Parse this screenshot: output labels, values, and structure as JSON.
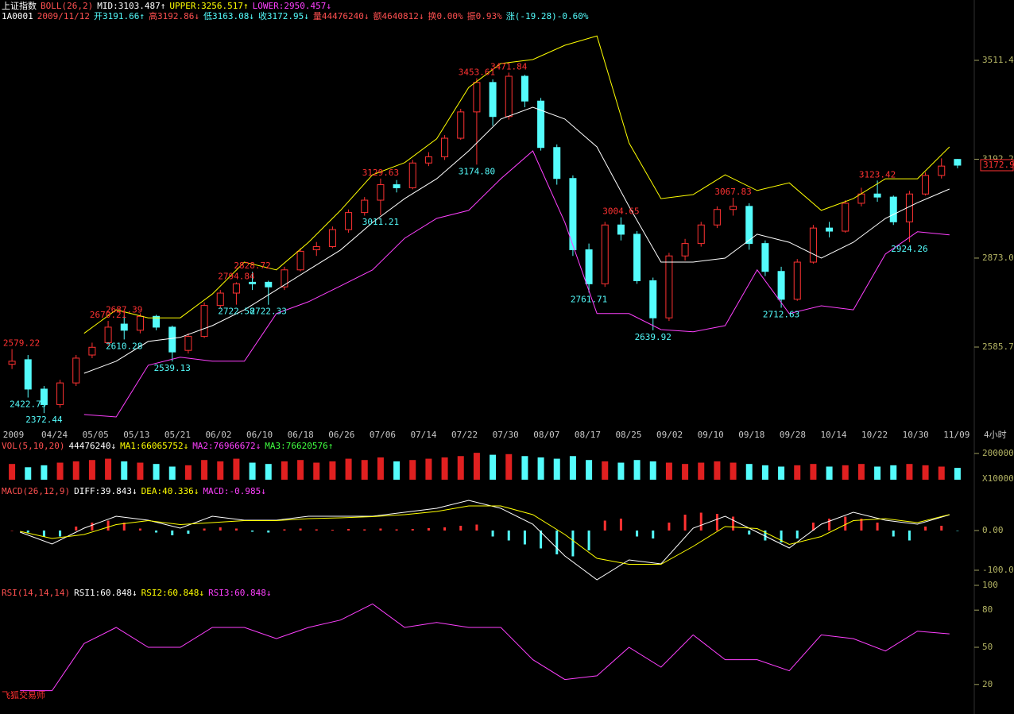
{
  "watermark": "飞狐交易师",
  "chart_data": [
    {
      "type": "candlestick",
      "legend": [
        {
          "text": "上证指数",
          "color": "#ffffff"
        },
        {
          "text": "BOLL(26,2)",
          "color": "#ff5050"
        },
        {
          "text": "MID:3103.487↑",
          "color": "#ffffff"
        },
        {
          "text": "UPPER:3256.517↑",
          "color": "#ffff00"
        },
        {
          "text": "LOWER:2950.457↓",
          "color": "#ff40ff"
        }
      ],
      "info": [
        {
          "text": "1A0001",
          "color": "#ffffff"
        },
        {
          "text": "2009/11/12",
          "color": "#ff5050"
        },
        {
          "text": "开3191.66↑",
          "color": "#54fcfc"
        },
        {
          "text": "高3192.86↓",
          "color": "#ff5050"
        },
        {
          "text": "低3163.08↓",
          "color": "#54fcfc"
        },
        {
          "text": "收3172.95↓",
          "color": "#54fcfc"
        },
        {
          "text": "量44476240↓",
          "color": "#ff5050"
        },
        {
          "text": "额4640812↓",
          "color": "#ff5050"
        },
        {
          "text": "换0.00%",
          "color": "#ff5050"
        },
        {
          "text": "振0.93%",
          "color": "#ff5050"
        },
        {
          "text": "涨(-19.28)-0.60%",
          "color": "#54fcfc"
        }
      ],
      "candles": [
        [
          2530,
          2579.22,
          2515,
          2540
        ],
        [
          2545,
          2560,
          2422.79,
          2450
        ],
        [
          2450,
          2460,
          2372.44,
          2400
        ],
        [
          2400,
          2480,
          2390,
          2470
        ],
        [
          2470,
          2560,
          2460,
          2550
        ],
        [
          2560,
          2600,
          2550,
          2585
        ],
        [
          2600,
          2670.21,
          2590,
          2650
        ],
        [
          2660,
          2687.39,
          2610.28,
          2640
        ],
        [
          2640,
          2695,
          2630,
          2685
        ],
        [
          2685,
          2690,
          2640,
          2650
        ],
        [
          2650,
          2655,
          2539.13,
          2570
        ],
        [
          2575,
          2630,
          2565,
          2620
        ],
        [
          2620,
          2730,
          2615,
          2720
        ],
        [
          2720,
          2770,
          2710,
          2760
        ],
        [
          2760,
          2794.84,
          2722.58,
          2790
        ],
        [
          2795,
          2828.72,
          2770,
          2790
        ],
        [
          2795,
          2800,
          2722.33,
          2780
        ],
        [
          2780,
          2845,
          2770,
          2835
        ],
        [
          2835,
          2905,
          2830,
          2895
        ],
        [
          2900,
          2925,
          2880,
          2910
        ],
        [
          2910,
          2975,
          2905,
          2965
        ],
        [
          2965,
          3030,
          2955,
          3020
        ],
        [
          3020,
          3070,
          3010,
          3060
        ],
        [
          3060,
          3129.63,
          3011.21,
          3110
        ],
        [
          3110,
          3125,
          3085,
          3100
        ],
        [
          3100,
          3190,
          3095,
          3180
        ],
        [
          3180,
          3215,
          3170,
          3200
        ],
        [
          3200,
          3270,
          3190,
          3260
        ],
        [
          3260,
          3355,
          3255,
          3345
        ],
        [
          3345,
          3453.61,
          3174.8,
          3440
        ],
        [
          3440,
          3450,
          3300,
          3330
        ],
        [
          3330,
          3471.84,
          3320,
          3460
        ],
        [
          3460,
          3465,
          3360,
          3380
        ],
        [
          3380,
          3390,
          3220,
          3230
        ],
        [
          3230,
          3240,
          3110,
          3130
        ],
        [
          3130,
          3140,
          2880,
          2900
        ],
        [
          2900,
          2920,
          2761.71,
          2790
        ],
        [
          2790,
          2990,
          2780,
          2980
        ],
        [
          2980,
          3004.65,
          2930,
          2950
        ],
        [
          2950,
          2960,
          2790,
          2800
        ],
        [
          2800,
          2810,
          2639.92,
          2680
        ],
        [
          2680,
          2890,
          2670,
          2880
        ],
        [
          2880,
          2935,
          2865,
          2920
        ],
        [
          2920,
          2990,
          2910,
          2980
        ],
        [
          2980,
          3040,
          2970,
          3030
        ],
        [
          3030,
          3067.83,
          3010,
          3040
        ],
        [
          3040,
          3050,
          2900,
          2920
        ],
        [
          2920,
          2930,
          2815,
          2830
        ],
        [
          2830,
          2845,
          2712.63,
          2740
        ],
        [
          2740,
          2870,
          2735,
          2860
        ],
        [
          2860,
          2980,
          2855,
          2970
        ],
        [
          2970,
          2990,
          2940,
          2960
        ],
        [
          2960,
          3060,
          2955,
          3050
        ],
        [
          3050,
          3100,
          3040,
          3080
        ],
        [
          3080,
          3123.42,
          3055,
          3070
        ],
        [
          3070,
          3075,
          2980,
          2990
        ],
        [
          2990,
          3090,
          2924.26,
          3080
        ],
        [
          3080,
          3150,
          3075,
          3140
        ],
        [
          3140,
          3195,
          3130,
          3170
        ],
        [
          3191.66,
          3192.86,
          3163.08,
          3172.95
        ]
      ],
      "series": [
        {
          "color": "#ffff00",
          "values": [
            null,
            null,
            2630,
            2706,
            2680,
            2680,
            2757,
            2860,
            2835,
            2924,
            3027,
            3142,
            3181,
            3258,
            3424,
            3501,
            3514,
            3560,
            3590,
            3245,
            3065,
            3078,
            3142,
            3091,
            3116,
            3027,
            3065,
            3129,
            3129,
            3232
          ]
        },
        {
          "color": "#ffffff",
          "values": [
            null,
            null,
            2501,
            2540,
            2604,
            2617,
            2655,
            2706,
            2770,
            2835,
            2899,
            2988,
            3065,
            3129,
            3219,
            3322,
            3360,
            3322,
            3232,
            3040,
            2860,
            2860,
            2873,
            2950,
            2924,
            2873,
            2924,
            3001,
            3052,
            3096
          ]
        },
        {
          "color": "#ff40ff",
          "values": [
            null,
            null,
            2368,
            2360,
            2527,
            2553,
            2540,
            2540,
            2694,
            2732,
            2783,
            2835,
            2937,
            3001,
            3027,
            3129,
            3219,
            2988,
            2694,
            2694,
            2642,
            2635,
            2655,
            2835,
            2694,
            2719,
            2706,
            2886,
            2958,
            2948
          ]
        }
      ],
      "price_labels": [
        "2579.22",
        "2422.79",
        "2372.44",
        "2670.21",
        "2687.39",
        "2610.28",
        "2539.13",
        "2794.84",
        "2722.58",
        "2828.72",
        "2722.33",
        "3129.63",
        "3011.21",
        "3453.61",
        "3174.80",
        "3471.84",
        "3004.65",
        "2761.71",
        "2639.92",
        "3067.83",
        "2712.63",
        "3123.42",
        "2924.26"
      ],
      "last_price_label": "3172.9",
      "ylim": [
        2321.6,
        3667.8
      ],
      "yticks": [
        {
          "value": 2585.7,
          "label": "2585.7"
        },
        {
          "value": 2873,
          "label": "2873.0"
        },
        {
          "value": 3192.2,
          "label": "3192.2"
        },
        {
          "value": 3511.4,
          "label": "3511.4"
        }
      ],
      "x_labels": [
        "2009",
        "04/24",
        "05/05",
        "05/13",
        "05/21",
        "06/02",
        "06/10",
        "06/18",
        "06/26",
        "07/06",
        "07/14",
        "07/22",
        "07/30",
        "08/07",
        "08/17",
        "08/25",
        "09/02",
        "09/10",
        "09/18",
        "09/28",
        "10/14",
        "10/22",
        "10/30",
        "11/09"
      ],
      "x_unit": "4小时"
    },
    {
      "type": "bar",
      "legend": [
        {
          "text": "VOL(5,10,20)",
          "color": "#ff5050"
        },
        {
          "text": "44476240↓",
          "color": "#ffffff"
        },
        {
          "text": "MA1:66065752↓",
          "color": "#ffff00"
        },
        {
          "text": "MA2:76966672↓",
          "color": "#ff40ff"
        },
        {
          "text": "MA3:76620576↑",
          "color": "#40ff40"
        }
      ],
      "values": [
        120000,
        95000,
        110000,
        130000,
        140000,
        150000,
        160000,
        140000,
        130000,
        120000,
        100000,
        110000,
        150000,
        140000,
        160000,
        130000,
        120000,
        140000,
        150000,
        130000,
        140000,
        160000,
        150000,
        170000,
        140000,
        150000,
        160000,
        170000,
        180000,
        205000,
        190000,
        195000,
        180000,
        170000,
        160000,
        180000,
        150000,
        140000,
        130000,
        150000,
        140000,
        130000,
        120000,
        130000,
        140000,
        130000,
        120000,
        110000,
        100000,
        110000,
        120000,
        100000,
        110000,
        120000,
        100000,
        110000,
        120000,
        110000,
        100000,
        90000
      ],
      "ylim": [
        0,
        236000
      ],
      "yticks": [
        200000
      ],
      "y_unit": "X10000"
    },
    {
      "type": "macd",
      "legend": [
        {
          "text": "MACD(26,12,9)",
          "color": "#ff5050"
        },
        {
          "text": "DIFF:39.843↓",
          "color": "#ffffff"
        },
        {
          "text": "DEA:40.336↓",
          "color": "#ffff00"
        },
        {
          "text": "MACD:-0.985↓",
          "color": "#ff40ff"
        }
      ],
      "histogram": [
        0,
        -5,
        -15,
        -15,
        10,
        20,
        25,
        20,
        5,
        -5,
        -12,
        -8,
        5,
        8,
        5,
        -3,
        -5,
        3,
        5,
        3,
        2,
        4,
        3,
        5,
        3,
        4,
        6,
        8,
        12,
        15,
        -15,
        -25,
        -35,
        -45,
        -60,
        -65,
        -50,
        25,
        30,
        -15,
        -20,
        20,
        40,
        45,
        42,
        35,
        -10,
        -25,
        -30,
        -20,
        20,
        30,
        35,
        30,
        20,
        -15,
        -25,
        10,
        12,
        -1
      ],
      "series": [
        {
          "color": "#ffffff",
          "values": [
            -4,
            -34,
            6,
            36,
            26,
            6,
            36,
            26,
            26,
            36,
            36,
            36,
            46,
            56,
            76,
            56,
            16,
            -64,
            -124,
            -74,
            -84,
            6,
            36,
            -4,
            -44,
            16,
            46,
            26,
            16,
            39.843
          ]
        },
        {
          "color": "#ffff00",
          "values": [
            -2,
            -20,
            -10,
            15,
            25,
            15,
            20,
            25,
            25,
            30,
            32,
            35,
            40,
            48,
            62,
            62,
            40,
            -10,
            -70,
            -85,
            -85,
            -40,
            10,
            5,
            -35,
            -15,
            25,
            30,
            20,
            40.336
          ]
        }
      ],
      "ylim": [
        -134,
        106
      ],
      "yticks": [
        {
          "value": 0,
          "label": "0.00"
        },
        {
          "value": -100,
          "label": "-100.0"
        }
      ]
    },
    {
      "type": "line",
      "legend": [
        {
          "text": "RSI(14,14,14)",
          "color": "#ff5050"
        },
        {
          "text": "RSI1:60.848↓",
          "color": "#ffffff"
        },
        {
          "text": "RSI2:60.848↓",
          "color": "#ffff00"
        },
        {
          "text": "RSI3:60.848↓",
          "color": "#ff40ff"
        }
      ],
      "series": [
        {
          "color": "#ff40ff",
          "values": [
            15,
            15,
            53,
            66,
            50,
            50,
            66,
            66,
            57,
            66,
            72,
            85,
            66,
            70,
            66,
            66,
            40,
            24,
            27,
            50,
            34,
            60,
            40,
            40,
            31,
            60,
            57,
            47,
            63,
            60.848
          ]
        }
      ],
      "ylim": [
        0,
        100
      ],
      "yticks": [
        20,
        50,
        80,
        100
      ]
    }
  ]
}
